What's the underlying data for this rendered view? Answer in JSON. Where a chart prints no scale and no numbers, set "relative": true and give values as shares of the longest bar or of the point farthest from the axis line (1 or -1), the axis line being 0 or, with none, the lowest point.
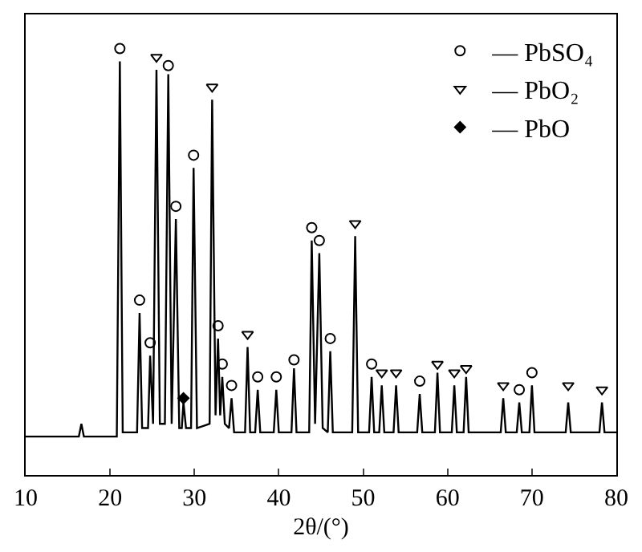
{
  "chart_data": {
    "type": "line",
    "relative": true,
    "xlabel": "2θ/(°)",
    "xlim": [
      10,
      80
    ],
    "xticks": [
      10,
      20,
      30,
      40,
      50,
      60,
      70,
      80
    ],
    "legend": "top right",
    "series": [
      {
        "color": "#000000",
        "marker": "none",
        "line_style": "solid",
        "x": [
          10,
          13,
          16.3,
          16.6,
          16.9,
          20,
          20.8,
          21.16,
          21.5,
          23.2,
          23.5,
          23.8,
          24.5,
          24.75,
          25.1,
          25.5,
          25.9,
          26.5,
          26.9,
          27.3,
          27.8,
          28.2,
          28.5,
          28.7,
          29.0,
          29.6,
          29.9,
          30.3,
          31.8,
          32.1,
          32.5,
          32.8,
          33.05,
          33.3,
          33.6,
          34.1,
          34.4,
          34.7,
          36.0,
          36.3,
          36.6,
          37.2,
          37.5,
          37.8,
          39.4,
          39.7,
          40.0,
          41.5,
          41.8,
          42.1,
          43.6,
          43.9,
          44.3,
          44.8,
          45.2,
          45.8,
          46.1,
          46.4,
          48.7,
          49.05,
          49.4,
          50.7,
          51.0,
          51.3,
          51.9,
          52.2,
          52.5,
          53.6,
          53.9,
          54.2,
          56.4,
          56.7,
          57.0,
          58.5,
          58.8,
          59.1,
          60.5,
          60.8,
          61.1,
          61.9,
          62.2,
          62.5,
          66.3,
          66.6,
          66.9,
          68.2,
          68.5,
          68.8,
          69.7,
          70.0,
          70.3,
          74.0,
          74.3,
          74.6,
          78.0,
          78.3,
          78.6,
          80
        ],
        "values": [
          0.09,
          0.09,
          0.09,
          0.12,
          0.09,
          0.09,
          0.09,
          0.97,
          0.1,
          0.1,
          0.38,
          0.11,
          0.11,
          0.28,
          0.12,
          0.95,
          0.12,
          0.12,
          0.94,
          0.12,
          0.6,
          0.11,
          0.11,
          0.17,
          0.11,
          0.11,
          0.72,
          0.11,
          0.12,
          0.88,
          0.14,
          0.32,
          0.14,
          0.23,
          0.12,
          0.11,
          0.18,
          0.1,
          0.1,
          0.3,
          0.1,
          0.1,
          0.2,
          0.1,
          0.1,
          0.2,
          0.1,
          0.1,
          0.25,
          0.1,
          0.1,
          0.55,
          0.12,
          0.52,
          0.11,
          0.1,
          0.29,
          0.1,
          0.1,
          0.56,
          0.1,
          0.1,
          0.23,
          0.1,
          0.1,
          0.21,
          0.1,
          0.1,
          0.21,
          0.1,
          0.1,
          0.19,
          0.1,
          0.1,
          0.24,
          0.1,
          0.1,
          0.21,
          0.1,
          0.1,
          0.23,
          0.1,
          0.1,
          0.18,
          0.1,
          0.1,
          0.17,
          0.1,
          0.1,
          0.21,
          0.1,
          0.1,
          0.17,
          0.1,
          0.1,
          0.17,
          0.1,
          0.1
        ]
      },
      {
        "type": "scatter",
        "name": "— PbSO₄",
        "color": "#000000",
        "marker": "circle",
        "x": [
          21.16,
          23.5,
          24.75,
          26.9,
          27.8,
          29.9,
          32.8,
          33.3,
          34.4,
          37.5,
          39.7,
          41.8,
          43.9,
          44.8,
          46.1,
          51.0,
          56.7,
          68.5,
          70.0
        ],
        "values": [
          1.0,
          0.41,
          0.31,
          0.96,
          0.63,
          0.75,
          0.35,
          0.26,
          0.21,
          0.23,
          0.23,
          0.27,
          0.58,
          0.55,
          0.32,
          0.26,
          0.22,
          0.2,
          0.24
        ]
      },
      {
        "type": "scatter",
        "name": "— PbO₂",
        "color": "#000000",
        "marker": "triangle",
        "x": [
          25.5,
          32.1,
          36.3,
          49.05,
          52.2,
          53.9,
          58.8,
          60.8,
          62.2,
          66.6,
          74.3,
          78.3
        ],
        "values": [
          0.98,
          0.91,
          0.33,
          0.59,
          0.24,
          0.24,
          0.26,
          0.24,
          0.25,
          0.21,
          0.21,
          0.2
        ]
      },
      {
        "type": "scatter",
        "name": "— PbO",
        "color": "#000000",
        "marker": "diamond",
        "x": [
          28.7
        ],
        "values": [
          0.18
        ]
      }
    ]
  }
}
